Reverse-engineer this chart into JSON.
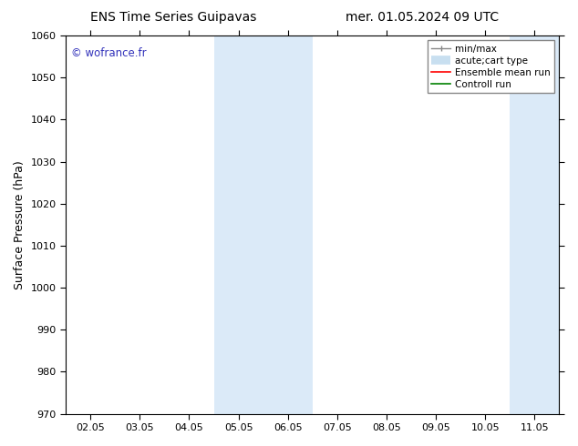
{
  "title_left": "ENS Time Series Guipavas",
  "title_right": "mer. 01.05.2024 09 UTC",
  "ylabel": "Surface Pressure (hPa)",
  "ylim": [
    970,
    1060
  ],
  "yticks": [
    970,
    980,
    990,
    1000,
    1010,
    1020,
    1030,
    1040,
    1050,
    1060
  ],
  "xtick_labels": [
    "02.05",
    "03.05",
    "04.05",
    "05.05",
    "06.05",
    "07.05",
    "08.05",
    "09.05",
    "10.05",
    "11.05"
  ],
  "xtick_positions": [
    0,
    1,
    2,
    3,
    4,
    5,
    6,
    7,
    8,
    9
  ],
  "xlim": [
    -0.5,
    9.5
  ],
  "shaded_regions": [
    {
      "xmin": 2.5,
      "xmax": 3.0,
      "color": "#dbeaf8"
    },
    {
      "xmin": 3.0,
      "xmax": 3.5,
      "color": "#dbeaf8"
    },
    {
      "xmin": 8.5,
      "xmax": 9.0,
      "color": "#dbeaf8"
    },
    {
      "xmin": 9.0,
      "xmax": 9.5,
      "color": "#dbeaf8"
    }
  ],
  "watermark": "© wofrance.fr",
  "watermark_color": "#3333bb",
  "bg_color": "#ffffff",
  "spine_color": "#000000",
  "tick_color": "#000000",
  "title_fontsize": 10,
  "axis_label_fontsize": 9,
  "tick_fontsize": 8,
  "legend_fontsize": 7.5
}
